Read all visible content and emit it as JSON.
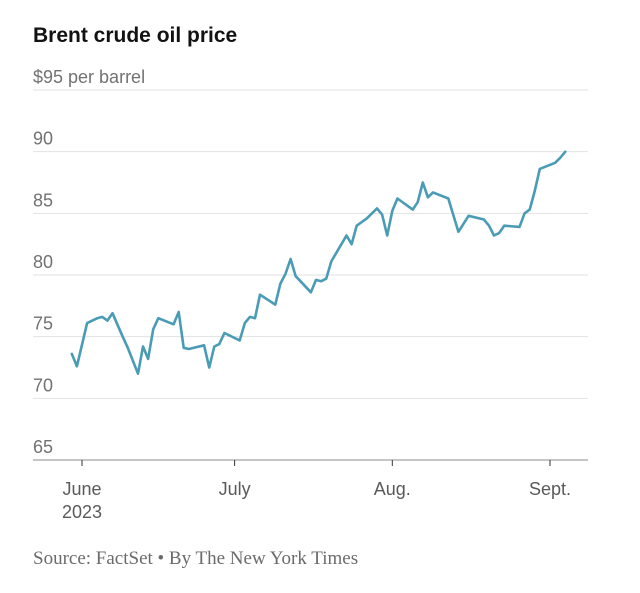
{
  "chart_data": {
    "type": "line",
    "title": "Brent crude oil price",
    "ylabel": "per barrel",
    "ylim": [
      65,
      95
    ],
    "y_ticks": [
      {
        "value": 95,
        "label": "$95 per barrel"
      },
      {
        "value": 90,
        "label": "90"
      },
      {
        "value": 85,
        "label": "85"
      },
      {
        "value": 80,
        "label": "80"
      },
      {
        "value": 75,
        "label": "75"
      },
      {
        "value": 70,
        "label": "70"
      },
      {
        "value": 65,
        "label": "65"
      }
    ],
    "x_domain_days": [
      -2,
      98
    ],
    "x_ticks": [
      {
        "day": 0,
        "label": "June",
        "sublabel": "2023"
      },
      {
        "day": 30,
        "label": "July"
      },
      {
        "day": 61,
        "label": "Aug."
      },
      {
        "day": 92,
        "label": "Sept."
      }
    ],
    "series": [
      {
        "name": "Brent crude oil price",
        "color": "#4a9bb5",
        "points": [
          [
            -2,
            73.6
          ],
          [
            -1,
            72.6
          ],
          [
            1,
            76.1
          ],
          [
            3,
            76.5
          ],
          [
            4,
            76.6
          ],
          [
            5,
            76.3
          ],
          [
            6,
            76.9
          ],
          [
            8,
            75.0
          ],
          [
            9,
            74.1
          ],
          [
            11,
            72.0
          ],
          [
            12,
            74.2
          ],
          [
            13,
            73.2
          ],
          [
            14,
            75.6
          ],
          [
            15,
            76.5
          ],
          [
            18,
            76.0
          ],
          [
            19,
            77.0
          ],
          [
            20,
            74.1
          ],
          [
            21,
            74.0
          ],
          [
            24,
            74.3
          ],
          [
            25,
            72.5
          ],
          [
            26,
            74.2
          ],
          [
            27,
            74.4
          ],
          [
            28,
            75.3
          ],
          [
            31,
            74.7
          ],
          [
            32,
            76.1
          ],
          [
            33,
            76.6
          ],
          [
            34,
            76.5
          ],
          [
            35,
            78.4
          ],
          [
            38,
            77.6
          ],
          [
            39,
            79.3
          ],
          [
            40,
            80.1
          ],
          [
            41,
            81.3
          ],
          [
            42,
            79.9
          ],
          [
            45,
            78.6
          ],
          [
            46,
            79.6
          ],
          [
            47,
            79.5
          ],
          [
            48,
            79.7
          ],
          [
            49,
            81.1
          ],
          [
            52,
            83.2
          ],
          [
            53,
            82.5
          ],
          [
            54,
            84.0
          ],
          [
            55,
            84.3
          ],
          [
            56,
            84.6
          ],
          [
            58,
            85.4
          ],
          [
            59,
            84.9
          ],
          [
            60,
            83.2
          ],
          [
            61,
            85.2
          ],
          [
            62,
            86.2
          ],
          [
            65,
            85.3
          ],
          [
            66,
            85.9
          ],
          [
            67,
            87.5
          ],
          [
            68,
            86.3
          ],
          [
            69,
            86.7
          ],
          [
            72,
            86.2
          ],
          [
            74,
            83.5
          ],
          [
            76,
            84.8
          ],
          [
            79,
            84.5
          ],
          [
            80,
            84.0
          ],
          [
            81,
            83.2
          ],
          [
            82,
            83.4
          ],
          [
            83,
            84.0
          ],
          [
            86,
            83.9
          ],
          [
            87,
            85.0
          ],
          [
            88,
            85.3
          ],
          [
            89,
            86.8
          ],
          [
            90,
            88.6
          ],
          [
            93,
            89.1
          ],
          [
            94,
            89.5
          ],
          [
            95,
            90.0
          ]
        ]
      }
    ]
  },
  "source_note": "Source: FactSet • By The New York Times"
}
